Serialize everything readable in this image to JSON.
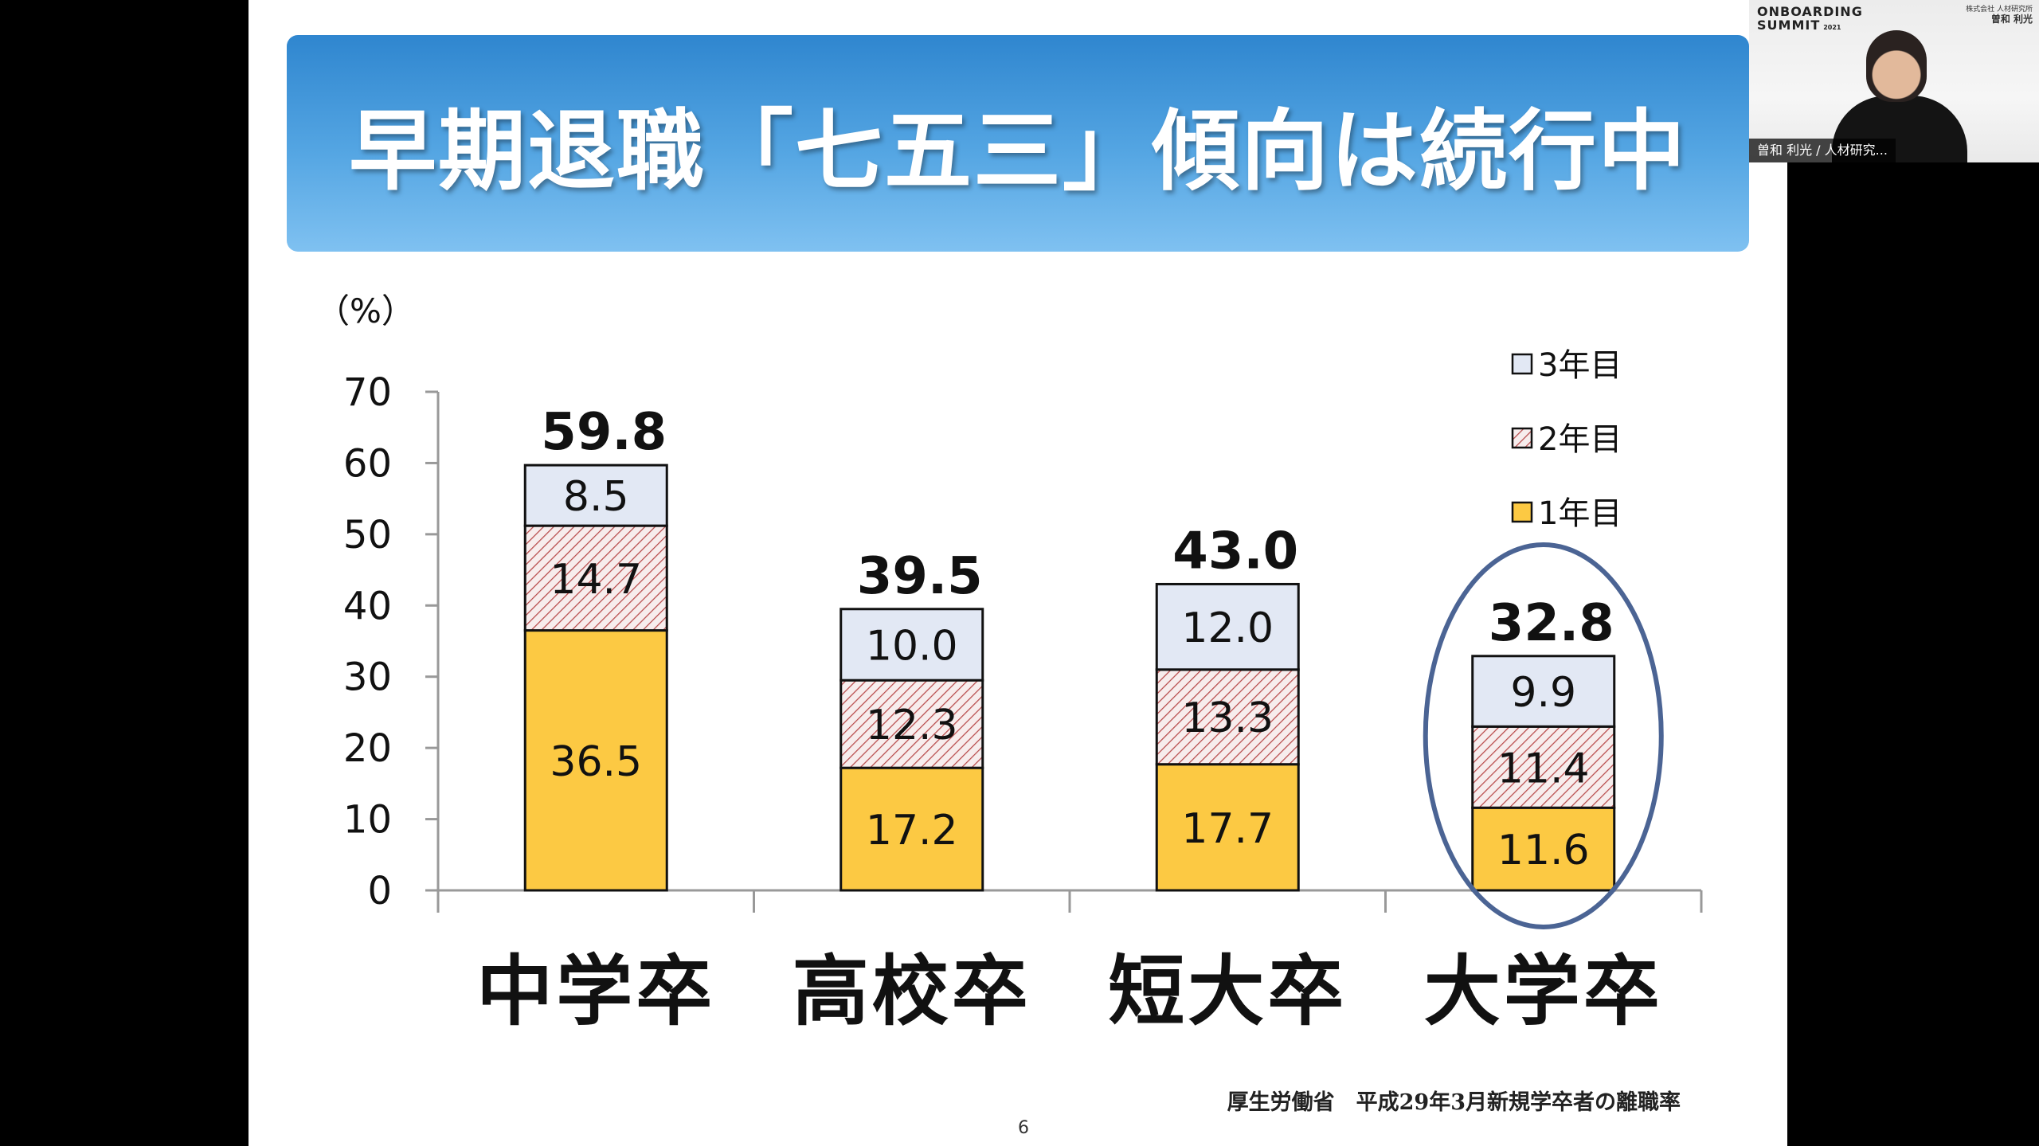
{
  "slide": {
    "title": "早期退職「七五三」傾向は続行中",
    "source_note": "厚生労働省　平成29年3月新規学卒者の離職率",
    "page_number": "6"
  },
  "chart_data": {
    "type": "bar",
    "stacked": true,
    "title": "",
    "ylabel": "（%）",
    "xlabel": "",
    "ylim": [
      0,
      70
    ],
    "yticks": [
      0,
      10,
      20,
      30,
      40,
      50,
      60,
      70
    ],
    "categories": [
      "中学卒",
      "高校卒",
      "短大卒",
      "大学卒"
    ],
    "series": [
      {
        "name": "1年目",
        "values": [
          36.5,
          17.2,
          17.7,
          11.6
        ],
        "labels": [
          "36.5",
          "17.2",
          "17.7",
          "11.6"
        ],
        "color": "#fcc943",
        "pattern": "solid"
      },
      {
        "name": "2年目",
        "values": [
          14.7,
          12.3,
          13.3,
          11.4
        ],
        "labels": [
          "14.7",
          "12.3",
          "13.3",
          "11.4"
        ],
        "color": "#f7eded",
        "pattern": "hatch"
      },
      {
        "name": "3年目",
        "values": [
          8.5,
          10.0,
          12.0,
          9.9
        ],
        "labels": [
          "8.5",
          "10.0",
          "12.0",
          "9.9"
        ],
        "color": "#e2e8f4",
        "pattern": "solid"
      }
    ],
    "totals": [
      "59.8",
      "39.5",
      "43.0",
      "32.8"
    ],
    "legend_order": [
      "3年目",
      "2年目",
      "1年目"
    ],
    "legend_position": "top-right",
    "highlight_category": "大学卒",
    "highlight_color": "#4b6494",
    "grid": false
  },
  "video_tile": {
    "logo_line1": "ONBOARDING",
    "logo_line2": "SUMMIT",
    "logo_year": "2021",
    "corner_company": "株式会社 人材研究所",
    "corner_name": "曽和 利光",
    "participant_name": "曽和 利光 / 人材研究..."
  }
}
